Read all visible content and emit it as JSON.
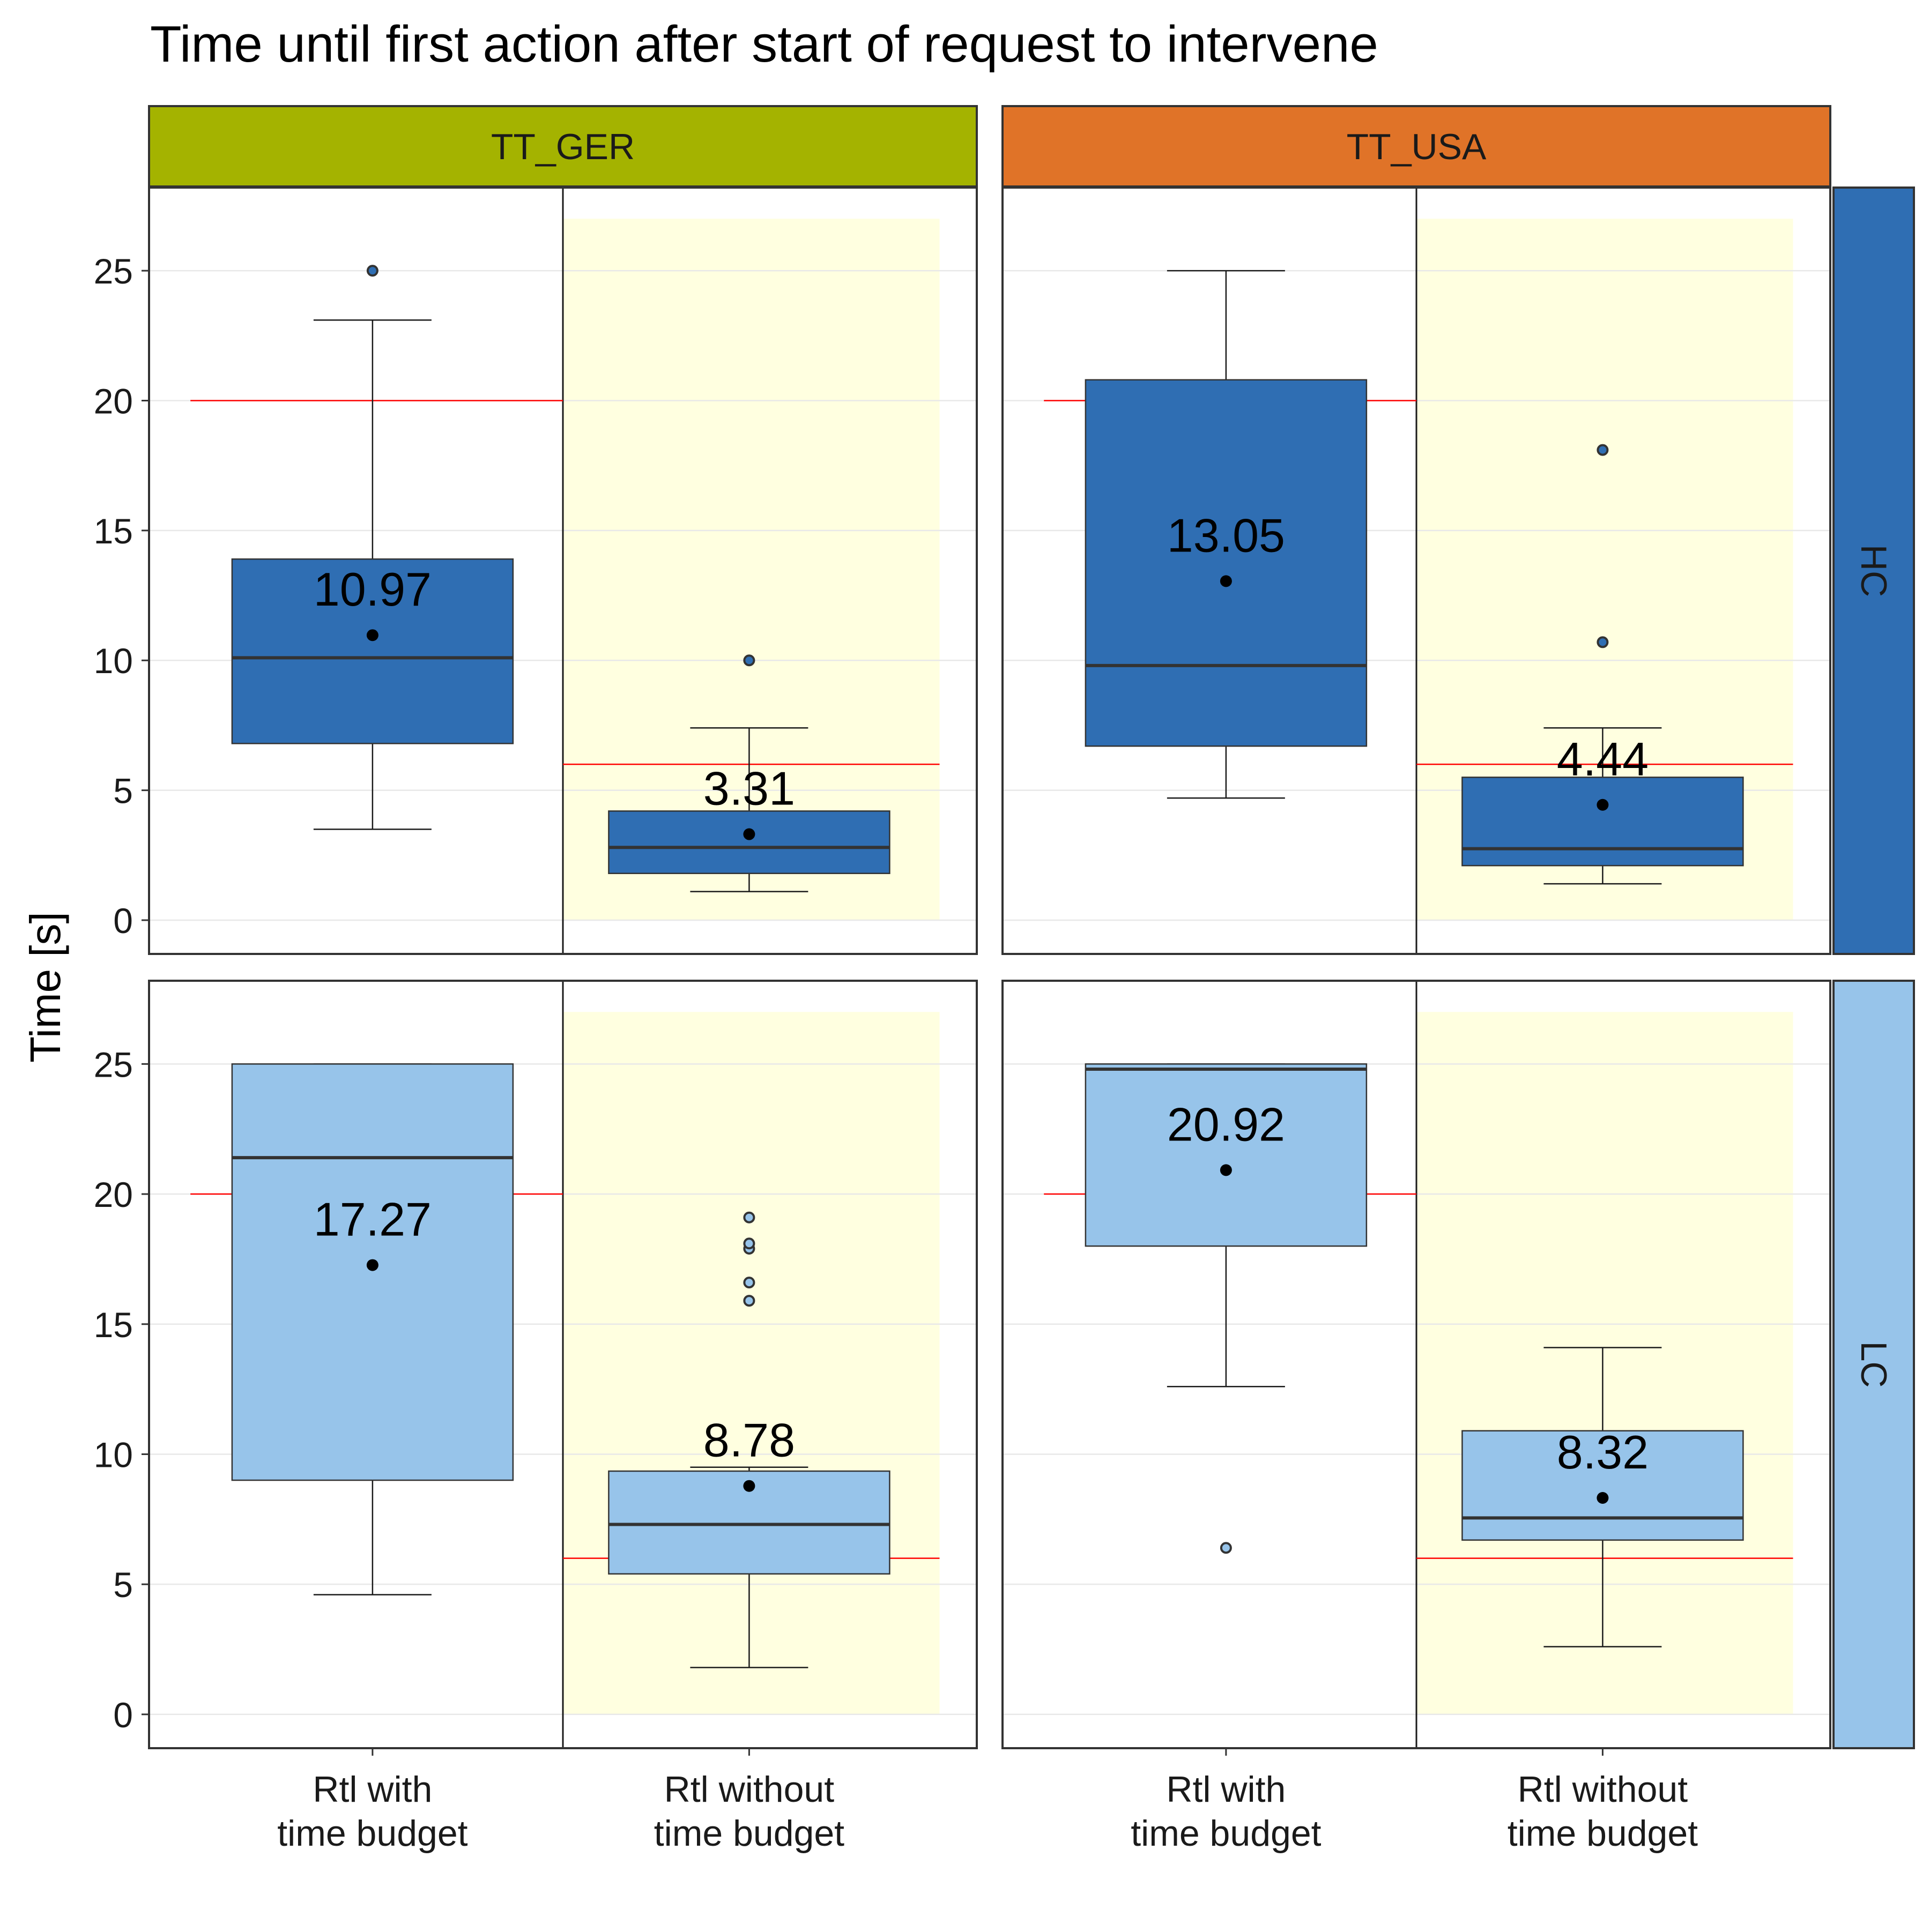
{
  "title": "Time until first action after start of request to intervene",
  "chart_data": {
    "type": "boxplot",
    "title": "Time until first action after start of request to intervene",
    "ylabel": "Time [s]",
    "xlabel": "",
    "ylim": [
      -1.3,
      28.2
    ],
    "yticks": [
      0,
      5,
      10,
      15,
      20,
      25
    ],
    "grid": true,
    "categories": [
      "Rtl with\ntime budget",
      "Rtl without\ntime budget"
    ],
    "column_facets": [
      {
        "label": "TT_GER",
        "color": "#a4b300"
      },
      {
        "label": "TT_USA",
        "color": "#e07328"
      }
    ],
    "row_facets": [
      {
        "label": "HC",
        "color": "#2f6eb3",
        "box_color": "#2f6eb3"
      },
      {
        "label": "LC",
        "color": "#97c4ea",
        "box_color": "#97c4ea"
      }
    ],
    "shaded_category_index": 1,
    "shade_color": "#ffffe0",
    "shade_range": [
      0,
      27
    ],
    "reference_line_color": "#ff0000",
    "panels": [
      {
        "row": "HC",
        "column": "TT_GER",
        "boxes": [
          {
            "category": "Rtl with time budget",
            "whisker_low": 3.5,
            "q1": 6.8,
            "median": 10.1,
            "q3": 13.9,
            "whisker_high": 23.1,
            "mean": 10.97,
            "mean_label": "10.97",
            "outliers": [
              25.0
            ],
            "reference": 20
          },
          {
            "category": "Rtl without time budget",
            "whisker_low": 1.1,
            "q1": 1.8,
            "median": 2.8,
            "q3": 4.2,
            "whisker_high": 7.4,
            "mean": 3.31,
            "mean_label": "3.31",
            "outliers": [
              10.0
            ],
            "reference": 6
          }
        ]
      },
      {
        "row": "HC",
        "column": "TT_USA",
        "boxes": [
          {
            "category": "Rtl with time budget",
            "whisker_low": 4.7,
            "q1": 6.7,
            "median": 9.8,
            "q3": 20.8,
            "whisker_high": 25.0,
            "mean": 13.05,
            "mean_label": "13.05",
            "outliers": [],
            "reference": 20
          },
          {
            "category": "Rtl without time budget",
            "whisker_low": 1.4,
            "q1": 2.1,
            "median": 2.75,
            "q3": 5.5,
            "whisker_high": 7.4,
            "mean": 4.44,
            "mean_label": "4.44",
            "outliers": [
              10.7,
              18.1
            ],
            "reference": 6
          }
        ]
      },
      {
        "row": "LC",
        "column": "TT_GER",
        "boxes": [
          {
            "category": "Rtl with time budget",
            "whisker_low": 4.6,
            "q1": 9.0,
            "median": 21.4,
            "q3": 25.0,
            "whisker_high": 25.0,
            "mean": 17.27,
            "mean_label": "17.27",
            "outliers": [],
            "reference": 20
          },
          {
            "category": "Rtl without time budget",
            "whisker_low": 1.8,
            "q1": 5.4,
            "median": 7.3,
            "q3": 9.35,
            "whisker_high": 9.5,
            "mean": 8.78,
            "mean_label": "8.78",
            "outliers": [
              15.9,
              16.6,
              17.9,
              18.1,
              19.1
            ],
            "reference": 6
          }
        ]
      },
      {
        "row": "LC",
        "column": "TT_USA",
        "boxes": [
          {
            "category": "Rtl with time budget",
            "whisker_low": 12.6,
            "q1": 18.0,
            "median": 24.8,
            "q3": 25.0,
            "whisker_high": 25.0,
            "mean": 20.92,
            "mean_label": "20.92",
            "outliers": [
              6.4
            ],
            "reference": 20
          },
          {
            "category": "Rtl without time budget",
            "whisker_low": 2.6,
            "q1": 6.7,
            "median": 7.55,
            "q3": 10.9,
            "whisker_high": 14.1,
            "mean": 8.32,
            "mean_label": "8.32",
            "outliers": [],
            "reference": 6
          }
        ]
      }
    ]
  }
}
